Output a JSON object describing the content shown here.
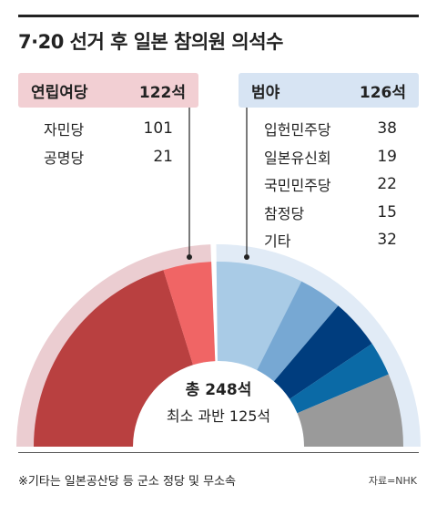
{
  "title": "7·20 선거 후 일본 참의원 의석수",
  "ruling": {
    "label": "연립여당",
    "seats": "122석",
    "bg": "#f2cfd3"
  },
  "opposition": {
    "label": "범야",
    "seats": "126석",
    "bg": "#d7e4f3"
  },
  "ruling_parties": [
    {
      "name": "자민당",
      "seats": "101"
    },
    {
      "name": "공명당",
      "seats": "21"
    }
  ],
  "opposition_parties": [
    {
      "name": "입헌민주당",
      "seats": "38"
    },
    {
      "name": "일본유신회",
      "seats": "19"
    },
    {
      "name": "국민민주당",
      "seats": "22"
    },
    {
      "name": "참정당",
      "seats": "15"
    },
    {
      "name": "기타",
      "seats": "32"
    }
  ],
  "center": {
    "total": "총 248석",
    "majority": "최소 과반 125석"
  },
  "footnote": "※기타는 일본공산당 등 군소 정당 및 무소속",
  "source": "자료=NHK",
  "chart_data": {
    "type": "pie",
    "style": "half-donut (semicircle)",
    "total": 248,
    "majority": 125,
    "groups": [
      {
        "name": "연립여당",
        "value": 122,
        "color": "#ebcdd1"
      },
      {
        "name": "범야",
        "value": 126,
        "color": "#e1ebf6"
      }
    ],
    "series": [
      {
        "name": "자민당",
        "value": 101,
        "color": "#b94040"
      },
      {
        "name": "공명당",
        "value": 21,
        "color": "#f06565"
      },
      {
        "name": "입헌민주당",
        "value": 38,
        "color": "#a9cbe6"
      },
      {
        "name": "일본유신회",
        "value": 19,
        "color": "#77a8d3"
      },
      {
        "name": "국민민주당",
        "value": 22,
        "color": "#003d7e"
      },
      {
        "name": "참정당",
        "value": 15,
        "color": "#0b6aa6"
      },
      {
        "name": "기타",
        "value": 32,
        "color": "#9a9a9a"
      }
    ]
  }
}
